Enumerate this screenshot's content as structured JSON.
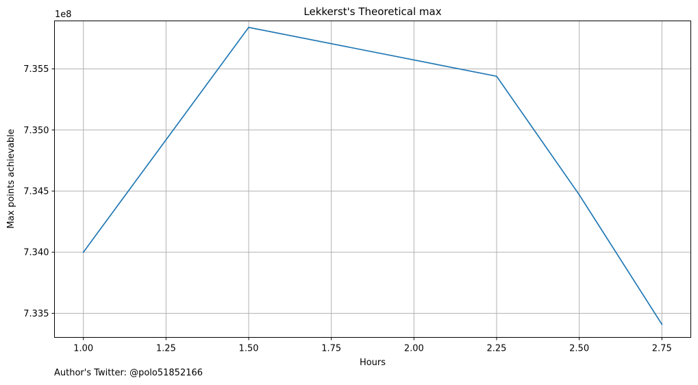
{
  "chart_data": {
    "type": "line",
    "title": "Lekkerst's Theoretical max",
    "xlabel": "Hours",
    "ylabel": "Max points achievable",
    "y_offset_label": "1e8",
    "xlim": [
      0.9125,
      2.8375
    ],
    "ylim": [
      7.33303,
      7.35893
    ],
    "x_ticks": [
      1.0,
      1.25,
      1.5,
      1.75,
      2.0,
      2.25,
      2.5,
      2.75
    ],
    "x_tick_labels": [
      "1.00",
      "1.25",
      "1.50",
      "1.75",
      "2.00",
      "2.25",
      "2.50",
      "2.75"
    ],
    "y_ticks": [
      7.335,
      7.34,
      7.345,
      7.35,
      7.355
    ],
    "y_tick_labels": [
      "7.335",
      "7.340",
      "7.345",
      "7.350",
      "7.355"
    ],
    "grid": true,
    "series": [
      {
        "color": "#1f77b4",
        "x": [
          1.0,
          1.5,
          2.25,
          2.5,
          2.75
        ],
        "y": [
          7.34,
          7.3584,
          7.3544,
          7.3447,
          7.3341
        ]
      }
    ]
  },
  "footer": {
    "text": "Author's Twitter: @polo51852166"
  }
}
